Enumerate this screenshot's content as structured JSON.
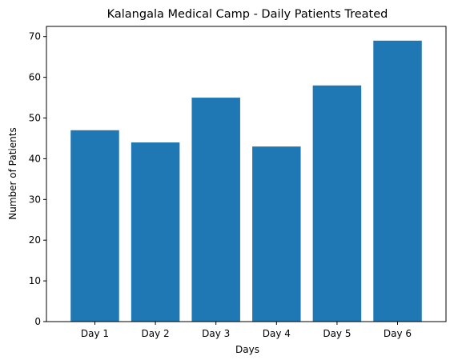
{
  "chart_data": {
    "type": "bar",
    "title": "Kalangala Medical Camp - Daily Patients Treated",
    "xlabel": "Days",
    "ylabel": "Number of Patients",
    "categories": [
      "Day 1",
      "Day 2",
      "Day 3",
      "Day 4",
      "Day 5",
      "Day 6"
    ],
    "values": [
      47,
      44,
      55,
      43,
      58,
      69
    ],
    "ylim": [
      0,
      72.5
    ],
    "yticks": [
      0,
      10,
      20,
      30,
      40,
      50,
      60,
      70
    ],
    "grid": false,
    "bar_color": "#1f77b4"
  }
}
